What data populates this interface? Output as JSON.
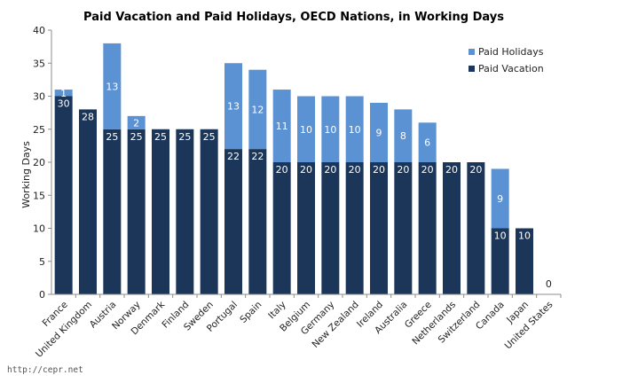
{
  "source_text": "http://cepr.net",
  "chart_data": {
    "type": "bar",
    "stacked": true,
    "title": "Paid Vacation and Paid Holidays, OECD Nations, in Working Days",
    "ylabel": "Working Days",
    "xlabel": "",
    "ylim": [
      0,
      40
    ],
    "yticks": [
      0,
      5,
      10,
      15,
      20,
      25,
      30,
      35,
      40
    ],
    "grid": false,
    "legend_position": "top-right",
    "categories": [
      "France",
      "United Kingdom",
      "Austria",
      "Norway",
      "Denmark",
      "Finland",
      "Sweden",
      "Portugal",
      "Spain",
      "Italy",
      "Belgium",
      "Germany",
      "New Zealand",
      "Ireland",
      "Australia",
      "Greece",
      "Netherlands",
      "Switzerland",
      "Canada",
      "Japan",
      "United States"
    ],
    "series": [
      {
        "name": "Paid Vacation",
        "color": "#1b3659",
        "values": [
          30,
          28,
          25,
          25,
          25,
          25,
          25,
          22,
          22,
          20,
          20,
          20,
          20,
          20,
          20,
          20,
          20,
          20,
          10,
          10,
          0
        ]
      },
      {
        "name": "Paid Holidays",
        "color": "#5b92d3",
        "values": [
          1,
          0,
          13,
          2,
          0,
          0,
          0,
          13,
          12,
          11,
          10,
          10,
          10,
          9,
          8,
          6,
          0,
          0,
          9,
          0,
          0
        ]
      }
    ],
    "legend": [
      "Paid Holidays",
      "Paid Vacation"
    ]
  }
}
